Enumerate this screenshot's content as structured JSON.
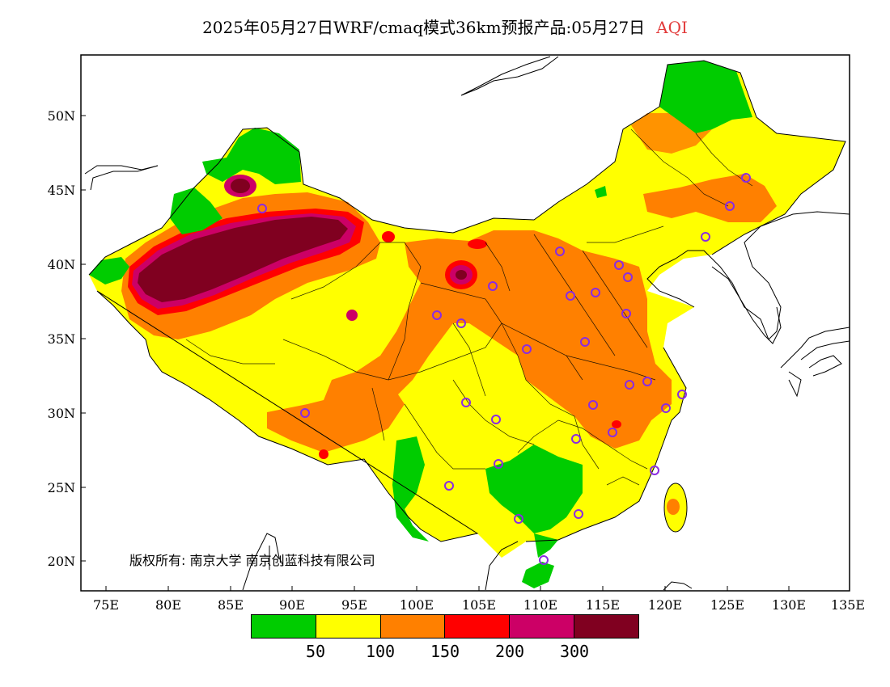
{
  "title": {
    "main": "2025年05月27日WRF/cmaq模式36km预报产品:05月27日",
    "variable": "AQI"
  },
  "axes": {
    "x_ticks": [
      "75E",
      "80E",
      "85E",
      "90E",
      "95E",
      "100E",
      "105E",
      "110E",
      "115E",
      "120E",
      "125E",
      "130E",
      "135E"
    ],
    "y_ticks": [
      "20N",
      "25N",
      "30N",
      "35N",
      "40N",
      "45N",
      "50N"
    ]
  },
  "copyright": "版权所有: 南京大学  南京创蓝科技有限公司",
  "legend": {
    "colors": [
      "#00cc00",
      "#ffff00",
      "#ff8000",
      "#ff0000",
      "#cc0066",
      "#800020"
    ],
    "labels": [
      "50",
      "100",
      "150",
      "200",
      "300"
    ]
  }
}
